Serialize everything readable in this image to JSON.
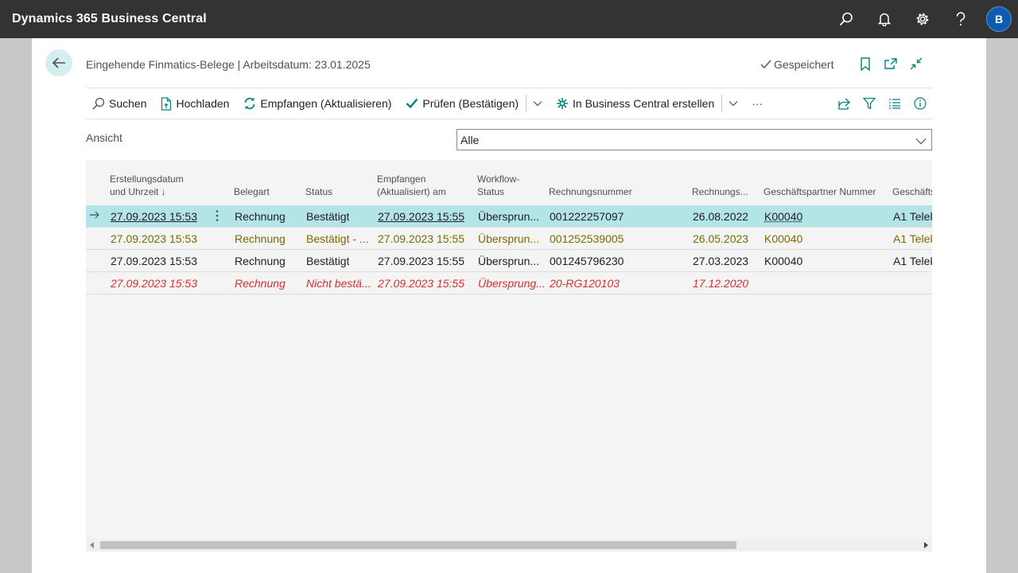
{
  "app": {
    "title": "Dynamics 365 Business Central",
    "avatar_initial": "B"
  },
  "header": {
    "title": "Eingehende Finmatics-Belege | Arbeitsdatum: 23.01.2025",
    "saved_label": "Gespeichert"
  },
  "actions": {
    "search": "Suchen",
    "upload": "Hochladen",
    "receive": "Empfangen (Aktualisieren)",
    "check": "Prüfen (Bestätigen)",
    "create": "In Business Central erstellen",
    "more": "···"
  },
  "view": {
    "label": "Ansicht",
    "value": "Alle"
  },
  "columns": {
    "created_line1": "Erstellungsdatum",
    "created_line2": "und Uhrzeit ↓",
    "doctype": "Belegart",
    "status": "Status",
    "received_line1": "Empfangen",
    "received_line2": "(Aktualisiert) am",
    "workflow_line1": "Workflow-",
    "workflow_line2": "Status",
    "invoice_no": "Rechnungsnummer",
    "invoice_date": "Rechnungs...",
    "partner_no": "Geschäftspartner Nummer",
    "partner_name": "Geschäfts"
  },
  "rows": [
    {
      "created": "27.09.2023 15:53",
      "doctype": "Rechnung",
      "status": "Bestätigt",
      "received": "27.09.2023 15:55",
      "workflow": "Übersprun...",
      "invoice_no": "001222257097",
      "invoice_date": "26.08.2022",
      "partner_no": "K00040",
      "partner_name": "A1 Telek"
    },
    {
      "created": "27.09.2023 15:53",
      "doctype": "Rechnung",
      "status": "Bestätigt - ...",
      "received": "27.09.2023 15:55",
      "workflow": "Übersprun...",
      "invoice_no": "001252539005",
      "invoice_date": "26.05.2023",
      "partner_no": "K00040",
      "partner_name": "A1 Telek"
    },
    {
      "created": "27.09.2023 15:53",
      "doctype": "Rechnung",
      "status": "Bestätigt",
      "received": "27.09.2023 15:55",
      "workflow": "Übersprun...",
      "invoice_no": "001245796230",
      "invoice_date": "27.03.2023",
      "partner_no": "K00040",
      "partner_name": "A1 Telek"
    },
    {
      "created": "27.09.2023 15:53",
      "doctype": "Rechnung",
      "status": "Nicht bestä...",
      "received": "27.09.2023 15:55",
      "workflow": "Übersprung...",
      "invoice_no": "20-RG120103",
      "invoice_date": "17.12.2020",
      "partner_no": "",
      "partner_name": ""
    }
  ],
  "colors": {
    "topbar": "#333333",
    "accent": "#00857d",
    "selected_row": "#b2e4e8",
    "row_warning": "#7a6a00",
    "row_error": "#d92f2f"
  }
}
